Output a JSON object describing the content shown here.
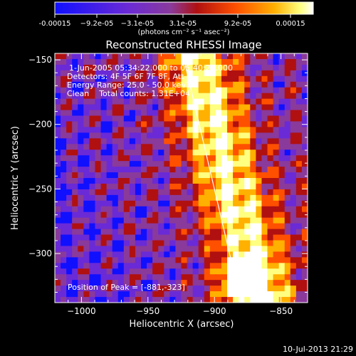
{
  "colorbar": {
    "ticks": [
      "-0.00015",
      "−9.2e-05",
      "−3.1e-05",
      "3.1e-05",
      "9.2e-05",
      "0.00015"
    ],
    "unit_label": "(photons cm⁻² s⁻¹ asec⁻²)",
    "colors": [
      "#1010ff",
      "#6a2ad6",
      "#8a3a9a",
      "#b01010",
      "#ff5000",
      "#ffb000",
      "#ffff80",
      "#ffffff"
    ]
  },
  "chart_data": {
    "type": "heatmap",
    "title": "Reconstructed RHESSI Image",
    "xlabel": "Heliocentric X (arcsec)",
    "ylabel": "Heliocentric Y (arcsec)",
    "xlim": [
      -1020,
      -830
    ],
    "ylim": [
      -338,
      -145
    ],
    "x_ticks": [
      "−1000",
      "−950",
      "−900",
      "−850"
    ],
    "x_tick_values": [
      -1000,
      -950,
      -900,
      -850
    ],
    "y_ticks": [
      "−150",
      "−200",
      "−250",
      "−300"
    ],
    "y_tick_values": [
      -150,
      -200,
      -250,
      -300
    ],
    "annotations": [
      "1-Jun-2005 05:34:22.000 to 05:40:22.000",
      "Detectors: 4F 5F 6F 7F 8F, Att 0",
      "Energy Range: 25.0 - 50.0 keV",
      "Clean    Total counts: 1.31E+04"
    ],
    "peak_label": "Position of Peak = [-881,-323]",
    "peak": [
      -881,
      -323
    ],
    "limb_line": [
      [
        -924,
        -145
      ],
      [
        -880,
        -338
      ]
    ]
  },
  "footer": {
    "timestamp": "10-Jul-2013 21:29"
  }
}
